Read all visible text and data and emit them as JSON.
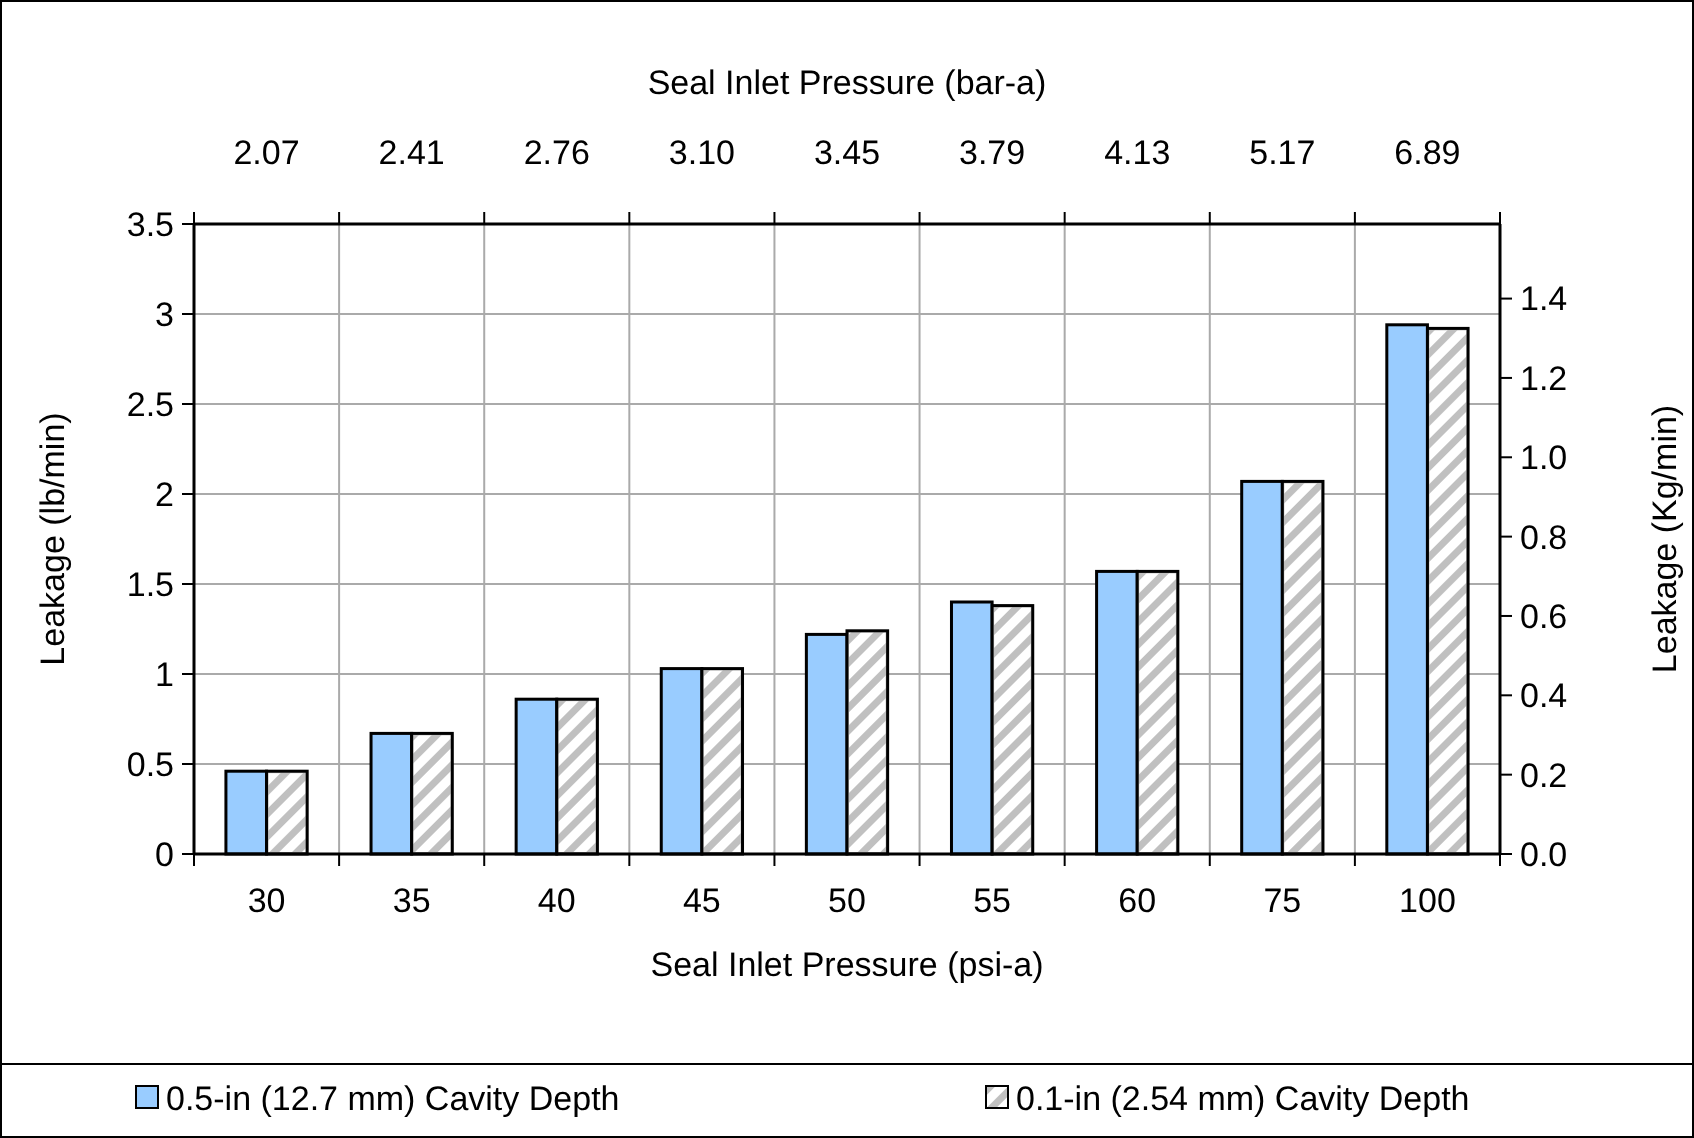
{
  "chart_data": {
    "type": "bar",
    "xlabel": "Seal Inlet Pressure (psi-a)",
    "x2label": "Seal Inlet Pressure (bar-a)",
    "ylabel": "Leakage (lb/min)",
    "y2label": "Leakage (Kg/min)",
    "categories": [
      "30",
      "35",
      "40",
      "45",
      "50",
      "55",
      "60",
      "75",
      "100"
    ],
    "annotations": [
      "2.07",
      "2.41",
      "2.76",
      "3.10",
      "3.45",
      "3.79",
      "4.13",
      "5.17",
      "6.89"
    ],
    "series": [
      {
        "name": "0.5-in (12.7 mm) Cavity Depth",
        "color": "#99ccff",
        "values": [
          0.46,
          0.67,
          0.86,
          1.03,
          1.22,
          1.4,
          1.57,
          2.07,
          2.94
        ]
      },
      {
        "name": "0.1-in (2.54 mm) Cavity Depth",
        "color": "#c0c0c0",
        "values": [
          0.46,
          0.67,
          0.86,
          1.03,
          1.24,
          1.38,
          1.57,
          2.07,
          2.92
        ]
      }
    ],
    "ylim": [
      0,
      3.5
    ],
    "yticks": [
      0,
      0.5,
      1,
      1.5,
      2,
      2.5,
      3,
      3.5
    ],
    "y2lim": [
      0,
      1.588
    ],
    "y2ticks": [
      {
        "value": 0,
        "label": "0.0"
      },
      {
        "value": 0.2,
        "label": "0.2"
      },
      {
        "value": 0.4,
        "label": "0.4"
      },
      {
        "value": 0.6,
        "label": "0.6"
      },
      {
        "value": 0.8,
        "label": "0.8"
      },
      {
        "value": 1,
        "label": "1.0"
      },
      {
        "value": 1.2,
        "label": "1.2"
      },
      {
        "value": 1.4,
        "label": "1.4"
      }
    ],
    "grid": true,
    "legend": "bottom"
  }
}
